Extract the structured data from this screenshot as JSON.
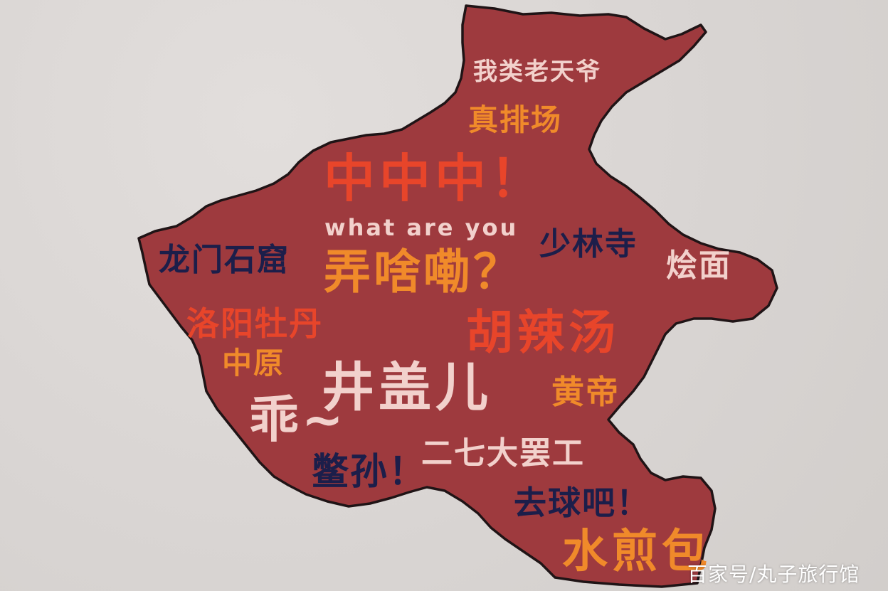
{
  "colors": {
    "background": "#dcd8d6",
    "map_fill": "#9e3a3e",
    "map_outline": "#1f1416",
    "orange": "#f08a2a",
    "red": "#e8452a",
    "pink": "#f2d1cc",
    "navy": "#1c1e4a",
    "watermark": "#ffffff"
  },
  "words": [
    {
      "text": "我类老天爷",
      "color": "pink"
    },
    {
      "text": "真排场",
      "color": "orange"
    },
    {
      "text": "中中中！",
      "color": "red"
    },
    {
      "text": "what are you",
      "color": "pink"
    },
    {
      "text": "少林寺",
      "color": "navy"
    },
    {
      "text": "烩面",
      "color": "pink"
    },
    {
      "text": "龙门石窟",
      "color": "navy"
    },
    {
      "text": "弄啥嘞？",
      "color": "orange"
    },
    {
      "text": "洛阳牡丹",
      "color": "red"
    },
    {
      "text": "胡辣汤",
      "color": "red"
    },
    {
      "text": "中原",
      "color": "orange"
    },
    {
      "text": "井盖儿",
      "color": "pink"
    },
    {
      "text": "黄帝",
      "color": "orange"
    },
    {
      "text": "乖~",
      "color": "pink"
    },
    {
      "text": "鳖孙！",
      "color": "navy"
    },
    {
      "text": "二七大罢工",
      "color": "pink"
    },
    {
      "text": "去球吧！",
      "color": "navy"
    },
    {
      "text": "水煎包",
      "color": "orange"
    }
  ],
  "watermark": {
    "text": "百家号/丸子旅行馆"
  }
}
